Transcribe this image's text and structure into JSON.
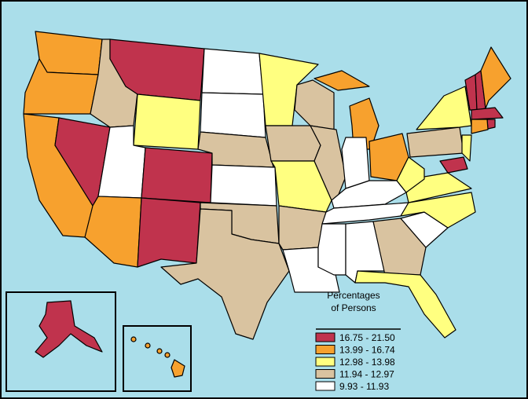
{
  "legend": {
    "title_lines": [
      "Percentages",
      "of Persons"
    ],
    "items": [
      {
        "label": "16.75 - 21.50",
        "color": "#c0334d"
      },
      {
        "label": "13.99 - 16.74",
        "color": "#f7a12e"
      },
      {
        "label": "12.98 - 13.98",
        "color": "#ffff80"
      },
      {
        "label": "11.94 - 12.97",
        "color": "#d9c3a0"
      },
      {
        "label": "9.93 - 11.93",
        "color": "#ffffff"
      }
    ]
  }
}
